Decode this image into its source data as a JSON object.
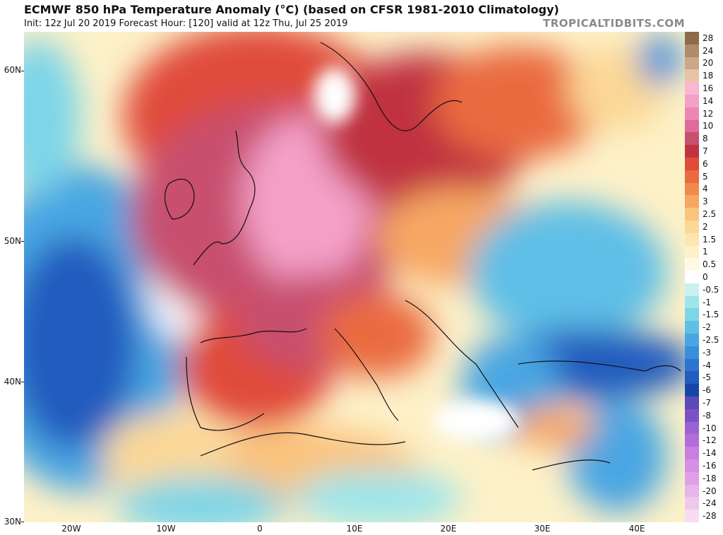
{
  "header": {
    "title": "ECMWF 850 hPa Temperature Anomaly (°C) (based on CFSR 1981-2010 Climatology)",
    "subtitle": "Init: 12z Jul 20 2019   Forecast Hour: [120]   valid at 12z Thu, Jul 25 2019",
    "watermark": "TROPICALTIDBITS.COM"
  },
  "axes": {
    "latitudes": [
      "60N",
      "50N",
      "40N",
      "30N"
    ],
    "longitudes": [
      "20W",
      "10W",
      "0",
      "10E",
      "20E",
      "30E",
      "40E"
    ]
  },
  "colorbar": {
    "labels": [
      "28",
      "24",
      "20",
      "18",
      "16",
      "14",
      "12",
      "10",
      "8",
      "7",
      "6",
      "5",
      "4",
      "3",
      "2.5",
      "2",
      "1.5",
      "1",
      "0.5",
      "0",
      "-0.5",
      "-1",
      "-1.5",
      "-2",
      "-2.5",
      "-3",
      "-4",
      "-5",
      "-6",
      "-7",
      "-8",
      "-10",
      "-12",
      "-14",
      "-16",
      "-18",
      "-20",
      "-24",
      "-28"
    ],
    "colors": [
      "#8b6b4a",
      "#b08a6a",
      "#c9a887",
      "#e6c4a8",
      "#f9b7d3",
      "#f4a0c8",
      "#ee86b7",
      "#e06a9c",
      "#c8506e",
      "#c03340",
      "#e04b3a",
      "#ea6b40",
      "#f2894c",
      "#f7a763",
      "#fbc37c",
      "#fcd896",
      "#fde6b0",
      "#fdf1c8",
      "#fefae4",
      "#ffffff",
      "#c9f1f0",
      "#9ee5ea",
      "#7dd5e8",
      "#5fbfe6",
      "#4aa6e2",
      "#3a8ddb",
      "#2d73cf",
      "#215cbe",
      "#1647a6",
      "#5c4ab5",
      "#7b52c5",
      "#9a62d2",
      "#b36cda",
      "#c77fe0",
      "#d58fe5",
      "#dfa0e8",
      "#e8b5ea",
      "#f0c8ed",
      "#f7dcf2"
    ]
  }
}
